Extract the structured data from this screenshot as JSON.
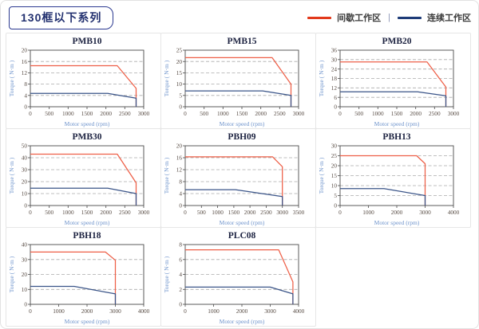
{
  "header": {
    "title": "130框以下系列"
  },
  "legend": {
    "separator": "|",
    "items": [
      {
        "label": "间歇工作区",
        "color": "#e2391b"
      },
      {
        "label": "连续工作区",
        "color": "#1e3c78"
      }
    ]
  },
  "chart_data": [
    {
      "type": "line",
      "title": "PMB10",
      "xlabel": "Motor speed (rpm)",
      "ylabel": "Torque ( N·m )",
      "xlim": [
        0,
        3000
      ],
      "ylim": [
        0,
        20
      ],
      "xticks": [
        0,
        500,
        1000,
        1500,
        2000,
        2500,
        3000
      ],
      "yticks": [
        0,
        4,
        8,
        12,
        16,
        20
      ],
      "grid": "horizontal-dashed",
      "series": [
        {
          "name": "间歇工作区",
          "color": "#ee5f47",
          "points": [
            [
              0,
              14.5
            ],
            [
              2300,
              14.5
            ],
            [
              2800,
              6.5
            ],
            [
              2800,
              0
            ]
          ]
        },
        {
          "name": "连续工作区",
          "color": "#3a5488",
          "points": [
            [
              0,
              4.7
            ],
            [
              2050,
              4.7
            ],
            [
              2800,
              3
            ],
            [
              2800,
              0
            ]
          ]
        }
      ]
    },
    {
      "type": "line",
      "title": "PMB15",
      "xlabel": "Motor speed (rpm)",
      "ylabel": "Torque ( N·m )",
      "xlim": [
        0,
        3000
      ],
      "ylim": [
        0,
        25
      ],
      "xticks": [
        0,
        500,
        1000,
        1500,
        2000,
        2500,
        3000
      ],
      "yticks": [
        0,
        5,
        10,
        15,
        20,
        25
      ],
      "grid": "horizontal-dashed",
      "series": [
        {
          "name": "间歇工作区",
          "color": "#ee5f47",
          "points": [
            [
              0,
              21.7
            ],
            [
              2300,
              21.7
            ],
            [
              2800,
              10
            ],
            [
              2800,
              0
            ]
          ]
        },
        {
          "name": "连续工作区",
          "color": "#3a5488",
          "points": [
            [
              0,
              7
            ],
            [
              2050,
              7
            ],
            [
              2800,
              5
            ],
            [
              2800,
              0
            ]
          ]
        }
      ]
    },
    {
      "type": "line",
      "title": "PMB20",
      "xlabel": "Motor speed (rpm)",
      "ylabel": "Torque ( N·m )",
      "xlim": [
        0,
        3000
      ],
      "ylim": [
        0,
        36
      ],
      "xticks": [
        0,
        500,
        1000,
        1500,
        2000,
        2500,
        3000
      ],
      "yticks": [
        0,
        6,
        12,
        18,
        24,
        30,
        36
      ],
      "grid": "horizontal-dashed",
      "series": [
        {
          "name": "间歇工作区",
          "color": "#ee5f47",
          "points": [
            [
              0,
              28.5
            ],
            [
              2300,
              28.5
            ],
            [
              2800,
              12.5
            ],
            [
              2800,
              0
            ]
          ]
        },
        {
          "name": "连续工作区",
          "color": "#3a5488",
          "points": [
            [
              0,
              9.5
            ],
            [
              2050,
              9.5
            ],
            [
              2800,
              7
            ],
            [
              2800,
              0
            ]
          ]
        }
      ]
    },
    {
      "type": "line",
      "title": "PMB30",
      "xlabel": "Motor speed (rpm)",
      "ylabel": "Torque ( N·m )",
      "xlim": [
        0,
        3000
      ],
      "ylim": [
        0,
        50
      ],
      "xticks": [
        0,
        500,
        1000,
        1500,
        2000,
        2500,
        3000
      ],
      "yticks": [
        0,
        10,
        20,
        30,
        40,
        50
      ],
      "grid": "horizontal-dashed",
      "series": [
        {
          "name": "间歇工作区",
          "color": "#ee5f47",
          "points": [
            [
              0,
              43
            ],
            [
              2300,
              43
            ],
            [
              2800,
              19
            ],
            [
              2800,
              0
            ]
          ]
        },
        {
          "name": "连续工作区",
          "color": "#3a5488",
          "points": [
            [
              0,
              14.5
            ],
            [
              2050,
              14.5
            ],
            [
              2800,
              10
            ],
            [
              2800,
              0
            ]
          ]
        }
      ]
    },
    {
      "type": "line",
      "title": "PBH09",
      "xlabel": "Motor speed (rpm)",
      "ylabel": "Torque ( N·m )",
      "xlim": [
        0,
        3500
      ],
      "ylim": [
        0,
        20
      ],
      "xticks": [
        0,
        500,
        1000,
        1500,
        2000,
        2500,
        3000,
        3500
      ],
      "yticks": [
        0,
        4,
        8,
        12,
        16,
        20
      ],
      "grid": "horizontal-dashed",
      "series": [
        {
          "name": "间歇工作区",
          "color": "#ee5f47",
          "points": [
            [
              0,
              16.3
            ],
            [
              2700,
              16.3
            ],
            [
              3000,
              13
            ],
            [
              3000,
              0
            ]
          ]
        },
        {
          "name": "连续工作区",
          "color": "#3a5488",
          "points": [
            [
              0,
              5.3
            ],
            [
              1550,
              5.3
            ],
            [
              3000,
              3
            ],
            [
              3000,
              0
            ]
          ]
        }
      ]
    },
    {
      "type": "line",
      "title": "PBH13",
      "xlabel": "Motor speed (rpm)",
      "ylabel": "Torque ( N·m )",
      "xlim": [
        0,
        4000
      ],
      "ylim": [
        0,
        30
      ],
      "xticks": [
        0,
        1000,
        2000,
        3000,
        4000
      ],
      "yticks": [
        0,
        5,
        10,
        15,
        20,
        25,
        30
      ],
      "grid": "horizontal-dashed",
      "series": [
        {
          "name": "间歇工作区",
          "color": "#ee5f47",
          "points": [
            [
              0,
              25
            ],
            [
              2700,
              25
            ],
            [
              3000,
              21
            ],
            [
              3000,
              0
            ]
          ]
        },
        {
          "name": "连续工作区",
          "color": "#3a5488",
          "points": [
            [
              0,
              8.5
            ],
            [
              1550,
              8.5
            ],
            [
              3000,
              5
            ],
            [
              3000,
              0
            ]
          ]
        }
      ]
    },
    {
      "type": "line",
      "title": "PBH18",
      "xlabel": "Motor speed (rpm)",
      "ylabel": "Torque ( N·m )",
      "xlim": [
        0,
        4000
      ],
      "ylim": [
        0,
        40
      ],
      "xticks": [
        0,
        1000,
        2000,
        3000,
        4000
      ],
      "yticks": [
        0,
        10,
        20,
        30,
        40
      ],
      "grid": "horizontal-dashed",
      "series": [
        {
          "name": "间歇工作区",
          "color": "#ee5f47",
          "points": [
            [
              0,
              35
            ],
            [
              2650,
              35
            ],
            [
              3000,
              29.5
            ],
            [
              3000,
              0
            ]
          ]
        },
        {
          "name": "连续工作区",
          "color": "#3a5488",
          "points": [
            [
              0,
              12
            ],
            [
              1550,
              12
            ],
            [
              3000,
              7
            ],
            [
              3000,
              0
            ]
          ]
        }
      ]
    },
    {
      "type": "line",
      "title": "PLC08",
      "xlabel": "Motor speed (rpm)",
      "ylabel": "Torque ( N·m )",
      "xlim": [
        0,
        4000
      ],
      "ylim": [
        0,
        8
      ],
      "xticks": [
        0,
        1000,
        2000,
        3000,
        4000
      ],
      "yticks": [
        0,
        2,
        4,
        6,
        8
      ],
      "grid": "horizontal-dashed",
      "series": [
        {
          "name": "间歇工作区",
          "color": "#ee5f47",
          "points": [
            [
              0,
              7.3
            ],
            [
              3300,
              7.3
            ],
            [
              3800,
              3
            ],
            [
              3800,
              0
            ]
          ]
        },
        {
          "name": "连续工作区",
          "color": "#3a5488",
          "points": [
            [
              0,
              2.3
            ],
            [
              3000,
              2.3
            ],
            [
              3800,
              1.4
            ],
            [
              3800,
              0
            ]
          ]
        }
      ]
    }
  ]
}
